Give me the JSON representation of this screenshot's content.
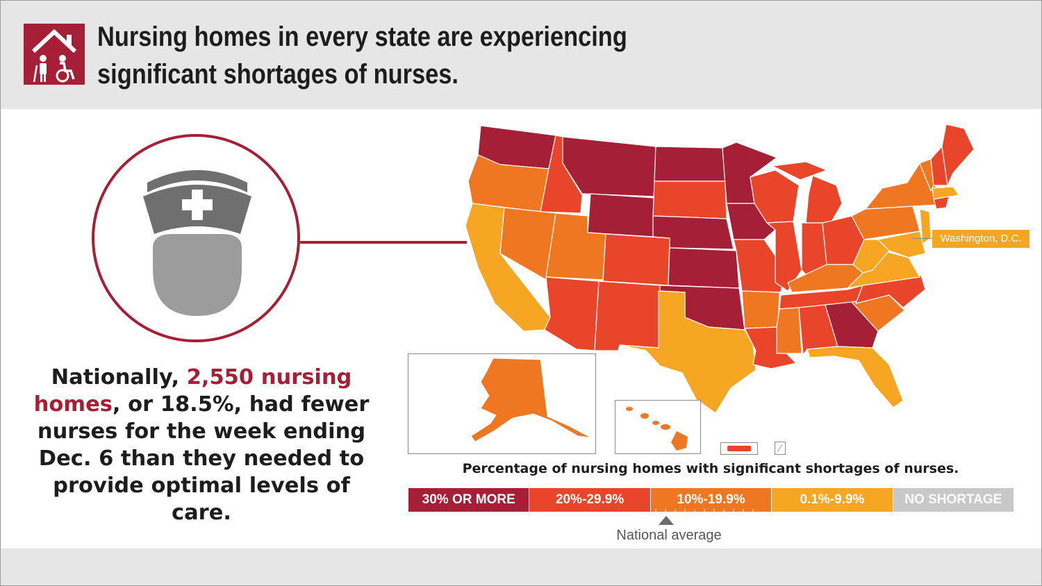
{
  "header": {
    "title_line1": "Nursing homes in every state are experiencing",
    "title_line2": "significant shortages of nurses.",
    "logo_icon": "nursing-home-icon"
  },
  "stat": {
    "part1": "Nationally, ",
    "highlight": "2,550 nursing homes",
    "part2": ", or 18.5%, had fewer nurses for the week ending Dec. 6 than they needed to provide optimal levels of care."
  },
  "map": {
    "dc_label": "Washington, D.C.",
    "legend_title": "Percentage of nursing homes with significant shortages of nurses.",
    "legend": [
      {
        "label": "30% OR MORE",
        "color": "#a51f37"
      },
      {
        "label": "20%-29.9%",
        "color": "#e8452a"
      },
      {
        "label": "10%-19.9%",
        "color": "#f07722"
      },
      {
        "label": "0.1%-9.9%",
        "color": "#f6a623"
      },
      {
        "label": "NO SHORTAGE",
        "color": "#c8c8c8"
      }
    ],
    "national_average_label": "National average"
  },
  "colors": {
    "brand": "#a51f37",
    "c30": "#a51f37",
    "c20": "#e8452a",
    "c10": "#f07722",
    "c01": "#f6a623",
    "none": "#c8c8c8"
  }
}
